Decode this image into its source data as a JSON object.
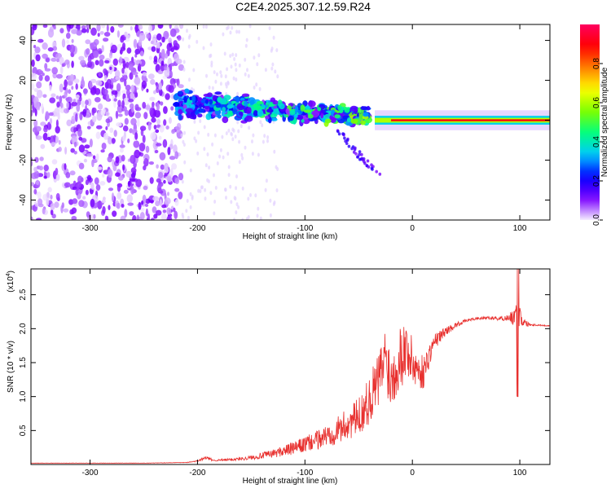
{
  "title": "C2E4.2025.307.12.59.R24",
  "chart_data": [
    {
      "type": "heatmap",
      "title": "C2E4.2025.307.12.59.R24",
      "xlabel": "Height of straight line (km)",
      "ylabel": "Frequency (Hz)",
      "xlim": [
        -355,
        128
      ],
      "ylim": [
        -50,
        48
      ],
      "xticks": [
        -300,
        -200,
        -100,
        0,
        100
      ],
      "yticks": [
        -40,
        -20,
        0,
        20,
        40
      ],
      "colorbar": {
        "label": "Normalized spectral amplitude",
        "range": [
          0,
          1
        ],
        "ticks": [
          "0.0",
          "0.2",
          "0.4",
          "0.6",
          "0.8"
        ],
        "tick_values": [
          0.0,
          0.2,
          0.4,
          0.6,
          0.8
        ],
        "colors": [
          "#f4ecff",
          "#7b00ff",
          "#0000ff",
          "#00c8ff",
          "#00ff80",
          "#7cff00",
          "#ffff00",
          "#ff8000",
          "#ff0000",
          "#ff0060"
        ]
      },
      "features": [
        {
          "name": "noise region",
          "x_range": [
            -355,
            -215
          ],
          "freq_range": [
            -50,
            48
          ],
          "amplitude": 0.05
        },
        {
          "name": "turbulent signal",
          "x_range": [
            -220,
            -40
          ],
          "freq_center": [
            8,
            2
          ],
          "amplitude": 0.35
        },
        {
          "name": "stable carrier",
          "x_range": [
            -20,
            128
          ],
          "freq_center": [
            0,
            0
          ],
          "amplitude": 0.9
        }
      ]
    },
    {
      "type": "line",
      "xlabel": "Height of straight line (km)",
      "ylabel": "SNR (10 * v/v)",
      "ylabel_multiplier": "(x10^4)",
      "xlim": [
        -355,
        128
      ],
      "ylim": [
        0,
        2.88
      ],
      "xticks": [
        -300,
        -200,
        -100,
        0,
        100
      ],
      "yticks": [
        "0.5",
        "1.0",
        "1.5",
        "2.0",
        "2.5"
      ],
      "ytick_values": [
        0.5,
        1.0,
        1.5,
        2.0,
        2.5
      ],
      "series": [
        {
          "name": "SNR",
          "color": "#e8302e",
          "x": [
            -355,
            -300,
            -250,
            -210,
            -200,
            -192,
            -185,
            -170,
            -150,
            -130,
            -110,
            -90,
            -70,
            -50,
            -40,
            -30,
            -25,
            -20,
            -15,
            -10,
            -5,
            0,
            5,
            10,
            20,
            30,
            40,
            50,
            60,
            70,
            80,
            90,
            95,
            100,
            105,
            110,
            120,
            128
          ],
          "values": [
            0.02,
            0.02,
            0.02,
            0.03,
            0.05,
            0.1,
            0.06,
            0.07,
            0.1,
            0.16,
            0.24,
            0.35,
            0.5,
            0.7,
            0.95,
            1.3,
            1.6,
            1.25,
            1.45,
            1.65,
            1.7,
            1.5,
            1.4,
            1.35,
            1.8,
            1.95,
            2.05,
            2.12,
            2.15,
            2.16,
            2.15,
            2.16,
            2.18,
            2.2,
            2.08,
            2.06,
            2.05,
            2.04
          ],
          "noise": [
            0.002,
            0.002,
            0.002,
            0.004,
            0.01,
            0.03,
            0.01,
            0.02,
            0.03,
            0.06,
            0.1,
            0.14,
            0.2,
            0.28,
            0.35,
            0.45,
            0.5,
            0.45,
            0.45,
            0.5,
            0.45,
            0.35,
            0.3,
            0.25,
            0.12,
            0.07,
            0.04,
            0.02,
            0.02,
            0.02,
            0.03,
            0.05,
            0.15,
            0.2,
            0.05,
            0.02,
            0.01,
            0.01
          ]
        }
      ]
    }
  ]
}
